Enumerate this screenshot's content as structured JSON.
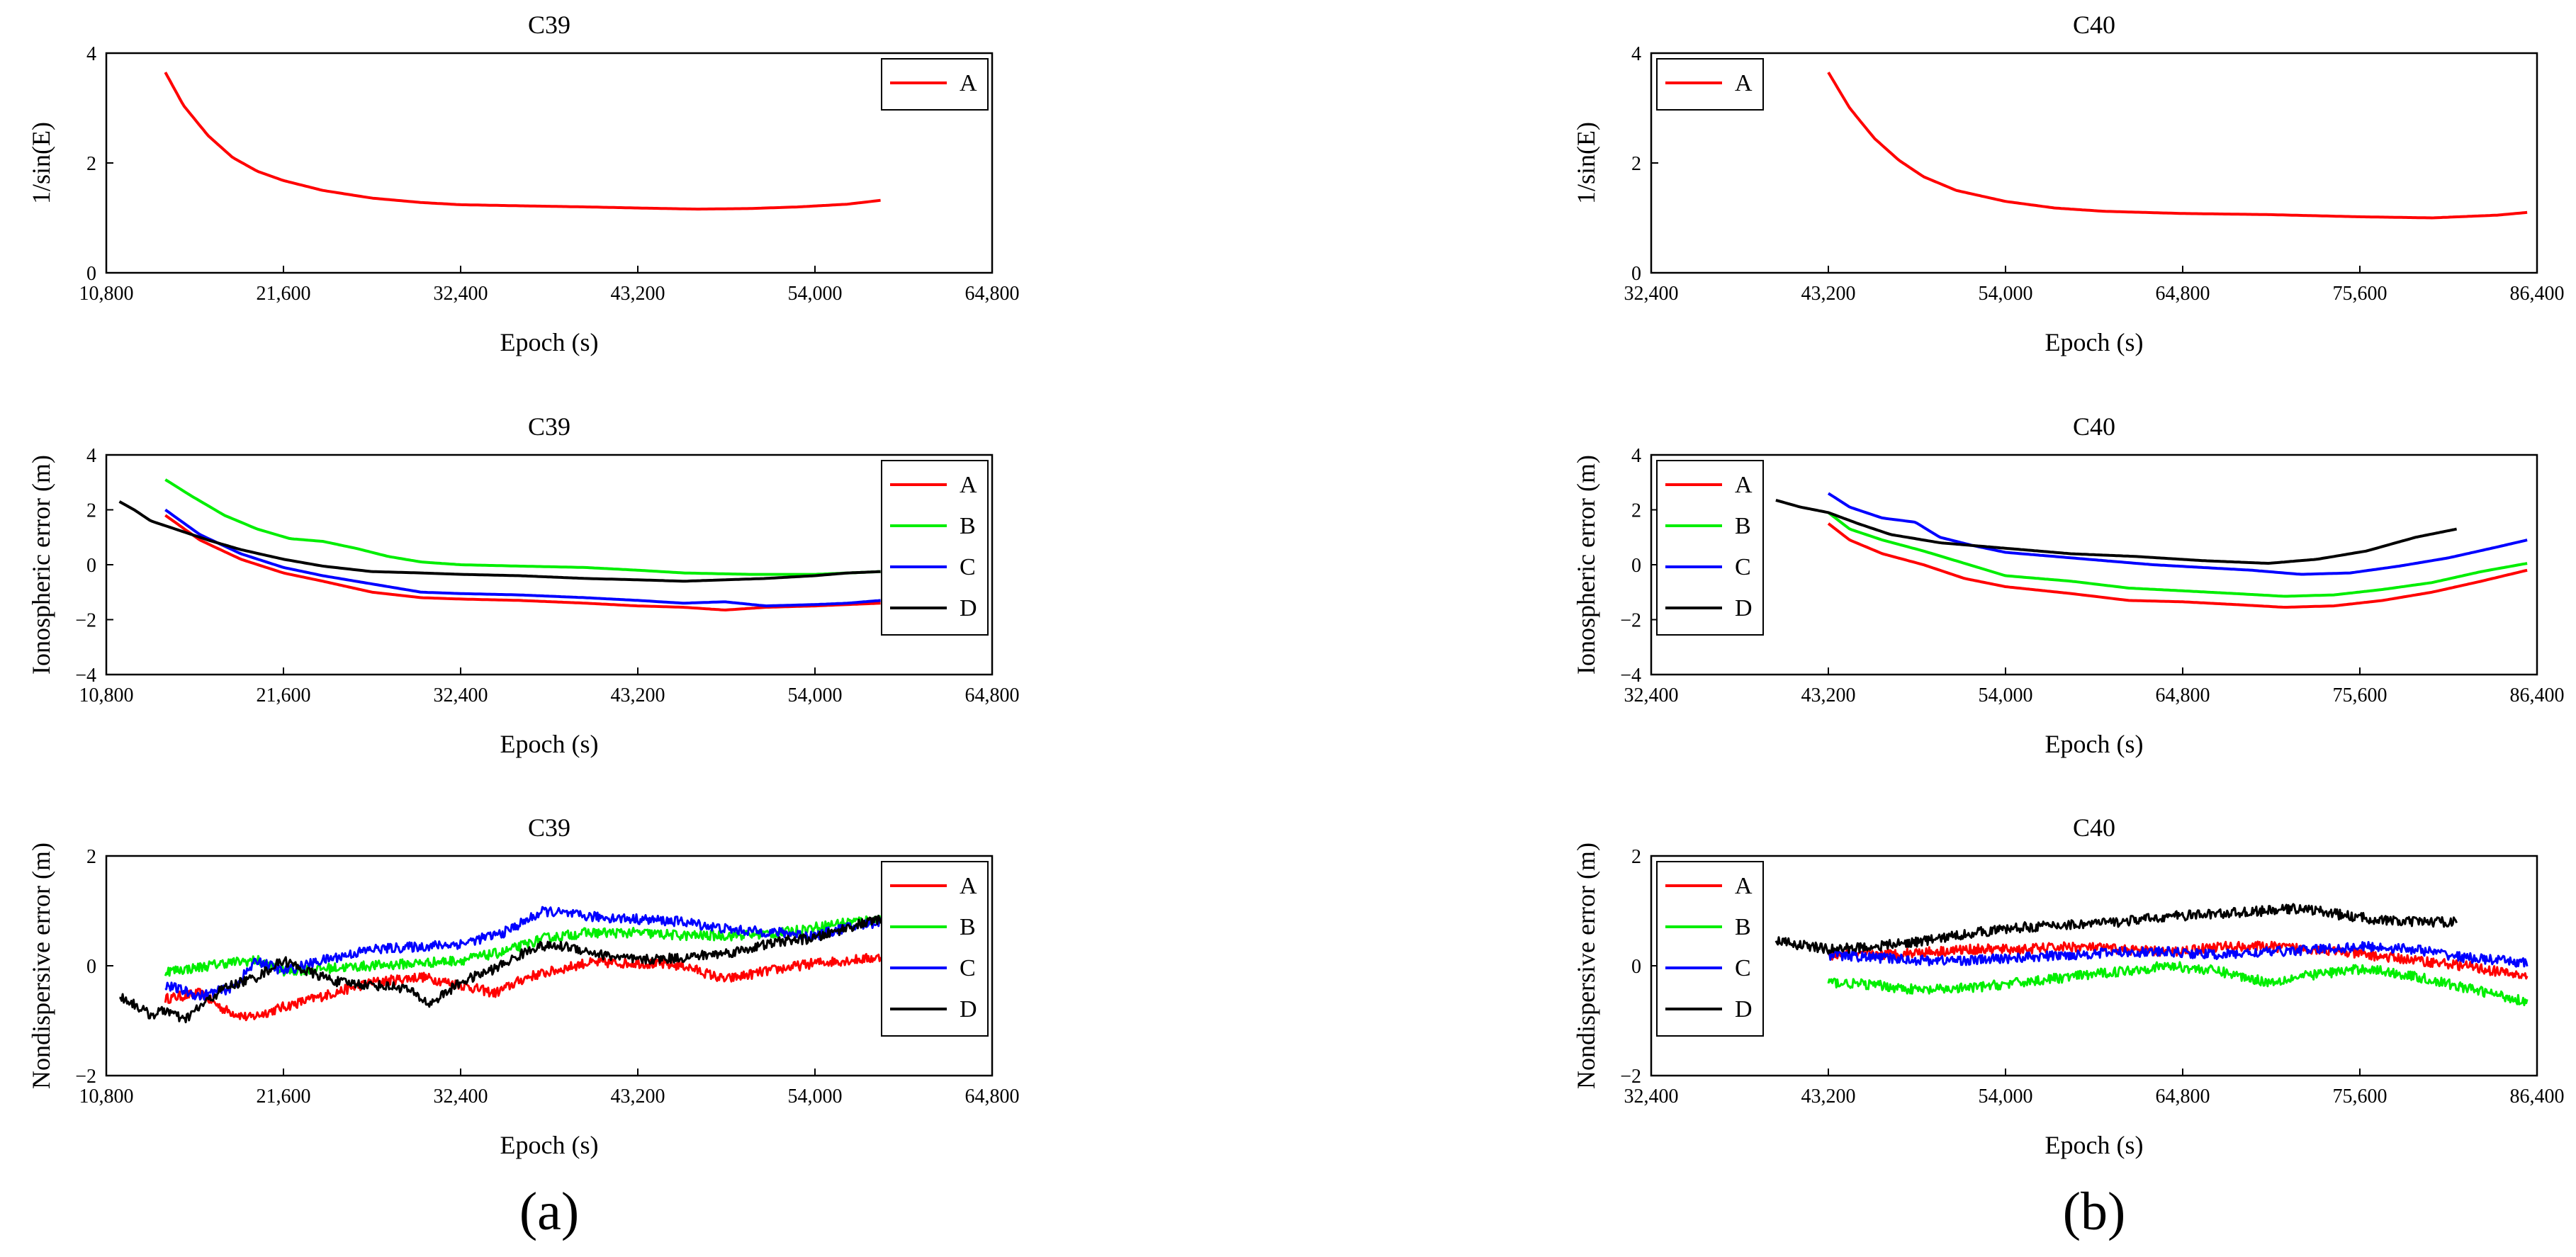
{
  "panel_labels": [
    "(a)",
    "(b)"
  ],
  "colors": {
    "A": "#ff0000",
    "B": "#00ee00",
    "C": "#0000ff",
    "D": "#000000",
    "axis": "#000000"
  },
  "chart_data": [
    {
      "type": "line",
      "title": "C39",
      "xlabel": "Epoch (s)",
      "ylabel": "1/sin(E)",
      "xlim": [
        10800,
        64800
      ],
      "xticks": [
        10800,
        21600,
        32400,
        43200,
        54000,
        64800
      ],
      "xtick_labels": [
        "10,800",
        "21,600",
        "32,400",
        "43,200",
        "54,000",
        "64,800"
      ],
      "ylim": [
        0,
        4
      ],
      "yticks": [
        0,
        2,
        4
      ],
      "ytick_labels": [
        "0",
        "2",
        "4"
      ],
      "legend": [
        "A"
      ],
      "legend_position": "top-right",
      "series": [
        {
          "name": "A",
          "x": [
            14400,
            15500,
            17000,
            18500,
            20000,
            21600,
            24000,
            27000,
            30000,
            32400,
            36000,
            40000,
            43200,
            46800,
            50000,
            53000,
            56000,
            58000
          ],
          "y": [
            3.65,
            3.05,
            2.5,
            2.1,
            1.85,
            1.68,
            1.5,
            1.36,
            1.28,
            1.24,
            1.22,
            1.2,
            1.18,
            1.16,
            1.17,
            1.2,
            1.25,
            1.32
          ]
        }
      ]
    },
    {
      "type": "line",
      "title": "C40",
      "xlabel": "Epoch (s)",
      "ylabel": "1/sin(E)",
      "xlim": [
        32400,
        86400
      ],
      "xticks": [
        32400,
        43200,
        54000,
        64800,
        75600,
        86400
      ],
      "xtick_labels": [
        "32,400",
        "43,200",
        "54,000",
        "64,800",
        "75,600",
        "86,400"
      ],
      "ylim": [
        0,
        4
      ],
      "yticks": [
        0,
        2,
        4
      ],
      "ytick_labels": [
        "0",
        "2",
        "4"
      ],
      "legend": [
        "A"
      ],
      "legend_position": "top-left",
      "series": [
        {
          "name": "A",
          "x": [
            43200,
            44500,
            46000,
            47500,
            49000,
            51000,
            54000,
            57000,
            60000,
            64800,
            70000,
            75600,
            80000,
            84000,
            85800
          ],
          "y": [
            3.65,
            3.0,
            2.45,
            2.05,
            1.75,
            1.5,
            1.3,
            1.18,
            1.12,
            1.08,
            1.06,
            1.02,
            1.0,
            1.05,
            1.1
          ]
        }
      ]
    },
    {
      "type": "line",
      "title": "C39",
      "xlabel": "Epoch (s)",
      "ylabel": "Ionospheric error (m)",
      "xlim": [
        10800,
        64800
      ],
      "xticks": [
        10800,
        21600,
        32400,
        43200,
        54000,
        64800
      ],
      "xtick_labels": [
        "10,800",
        "21,600",
        "32,400",
        "43,200",
        "54,000",
        "64,800"
      ],
      "ylim": [
        -4,
        4
      ],
      "yticks": [
        -4,
        -2,
        0,
        2,
        4
      ],
      "ytick_labels": [
        "−4",
        "−2",
        "0",
        "2",
        "4"
      ],
      "legend": [
        "A",
        "B",
        "C",
        "D"
      ],
      "legend_position": "top-right",
      "series": [
        {
          "name": "A",
          "x": [
            14400,
            16500,
            19000,
            21600,
            24000,
            27000,
            30000,
            32400,
            36000,
            40000,
            43200,
            46000,
            48500,
            51000,
            54000,
            56000,
            58000
          ],
          "y": [
            1.8,
            0.9,
            0.2,
            -0.3,
            -0.6,
            -1.0,
            -1.2,
            -1.25,
            -1.3,
            -1.4,
            -1.5,
            -1.55,
            -1.65,
            -1.55,
            -1.5,
            -1.45,
            -1.4
          ]
        },
        {
          "name": "B",
          "x": [
            14400,
            16000,
            18000,
            20000,
            22000,
            24000,
            26000,
            28000,
            30000,
            32400,
            36000,
            40000,
            43200,
            46000,
            50000,
            54000,
            56000,
            58000
          ],
          "y": [
            3.1,
            2.5,
            1.8,
            1.3,
            0.95,
            0.85,
            0.6,
            0.3,
            0.1,
            0.0,
            -0.05,
            -0.1,
            -0.2,
            -0.3,
            -0.35,
            -0.35,
            -0.3,
            -0.25
          ]
        },
        {
          "name": "C",
          "x": [
            14400,
            16500,
            19000,
            21600,
            24000,
            27000,
            30000,
            32400,
            36000,
            40000,
            43200,
            46000,
            48500,
            51000,
            54000,
            56000,
            58000
          ],
          "y": [
            2.0,
            1.1,
            0.4,
            -0.1,
            -0.4,
            -0.7,
            -1.0,
            -1.05,
            -1.1,
            -1.2,
            -1.3,
            -1.4,
            -1.35,
            -1.5,
            -1.45,
            -1.4,
            -1.3
          ]
        },
        {
          "name": "D",
          "x": [
            11600,
            12500,
            13500,
            15000,
            17000,
            19000,
            21600,
            24000,
            27000,
            30000,
            32400,
            36000,
            40000,
            43200,
            46000,
            48500,
            51000,
            54000,
            56000,
            58000
          ],
          "y": [
            2.3,
            2.0,
            1.6,
            1.3,
            0.9,
            0.55,
            0.2,
            -0.05,
            -0.25,
            -0.3,
            -0.35,
            -0.4,
            -0.5,
            -0.55,
            -0.6,
            -0.55,
            -0.5,
            -0.4,
            -0.3,
            -0.25
          ]
        }
      ]
    },
    {
      "type": "line",
      "title": "C40",
      "xlabel": "Epoch (s)",
      "ylabel": "Ionospheric error (m)",
      "xlim": [
        32400,
        86400
      ],
      "xticks": [
        32400,
        43200,
        54000,
        64800,
        75600,
        86400
      ],
      "xtick_labels": [
        "32,400",
        "43,200",
        "54,000",
        "64,800",
        "75,600",
        "86,400"
      ],
      "ylim": [
        -4,
        4
      ],
      "yticks": [
        -4,
        -2,
        0,
        2,
        4
      ],
      "ytick_labels": [
        "−4",
        "−2",
        "0",
        "2",
        "4"
      ],
      "legend": [
        "A",
        "B",
        "C",
        "D"
      ],
      "legend_position": "top-left",
      "series": [
        {
          "name": "A",
          "x": [
            43200,
            44500,
            46500,
            49000,
            51500,
            54000,
            58000,
            61500,
            64800,
            68000,
            71000,
            74000,
            77000,
            80000,
            83000,
            85800
          ],
          "y": [
            1.5,
            0.9,
            0.4,
            0.0,
            -0.5,
            -0.8,
            -1.05,
            -1.3,
            -1.35,
            -1.45,
            -1.55,
            -1.5,
            -1.3,
            -1.0,
            -0.6,
            -0.2
          ]
        },
        {
          "name": "B",
          "x": [
            43200,
            44500,
            46500,
            49000,
            51500,
            54000,
            58000,
            61500,
            64800,
            68000,
            71000,
            74000,
            77000,
            80000,
            83000,
            85800
          ],
          "y": [
            1.9,
            1.3,
            0.9,
            0.5,
            0.05,
            -0.4,
            -0.6,
            -0.85,
            -0.95,
            -1.05,
            -1.15,
            -1.1,
            -0.9,
            -0.65,
            -0.25,
            0.05
          ]
        },
        {
          "name": "C",
          "x": [
            43200,
            44500,
            46500,
            48500,
            50000,
            52000,
            54000,
            57000,
            60000,
            63000,
            66000,
            69000,
            72000,
            75000,
            78000,
            81000,
            84000,
            85800
          ],
          "y": [
            2.6,
            2.1,
            1.7,
            1.55,
            1.0,
            0.7,
            0.45,
            0.3,
            0.15,
            0.0,
            -0.1,
            -0.2,
            -0.35,
            -0.3,
            -0.05,
            0.25,
            0.65,
            0.9
          ]
        },
        {
          "name": "D",
          "x": [
            40000,
            41500,
            43200,
            45000,
            47000,
            50000,
            54000,
            58000,
            62000,
            66000,
            70000,
            73000,
            76000,
            79000,
            81500
          ],
          "y": [
            2.35,
            2.1,
            1.9,
            1.5,
            1.1,
            0.8,
            0.6,
            0.4,
            0.3,
            0.15,
            0.05,
            0.2,
            0.5,
            1.0,
            1.3
          ]
        }
      ]
    },
    {
      "type": "line",
      "title": "C39",
      "xlabel": "Epoch (s)",
      "ylabel": "Nondispersive error (m)",
      "xlim": [
        10800,
        64800
      ],
      "xticks": [
        10800,
        21600,
        32400,
        43200,
        54000,
        64800
      ],
      "xtick_labels": [
        "10,800",
        "21,600",
        "32,400",
        "43,200",
        "54,000",
        "64,800"
      ],
      "ylim": [
        -2,
        2
      ],
      "yticks": [
        -2,
        0,
        2
      ],
      "ytick_labels": [
        "−2",
        "0",
        "2"
      ],
      "legend": [
        "A",
        "B",
        "C",
        "D"
      ],
      "legend_position": "top-right",
      "series": [
        {
          "name": "A",
          "x": [
            14400,
            16500,
            18000,
            19500,
            21600,
            24000,
            27000,
            30000,
            32400,
            34500,
            36500,
            38000,
            40000,
            43200,
            46000,
            48500,
            51000,
            54000,
            56000,
            58000
          ],
          "y": [
            -0.6,
            -0.5,
            -0.8,
            -0.95,
            -0.75,
            -0.55,
            -0.3,
            -0.2,
            -0.35,
            -0.5,
            -0.2,
            -0.1,
            0.05,
            0.05,
            0.0,
            -0.25,
            -0.1,
            0.05,
            0.1,
            0.15
          ]
        },
        {
          "name": "B",
          "x": [
            14400,
            16000,
            18000,
            20000,
            21600,
            24000,
            27000,
            30000,
            32400,
            35000,
            37500,
            40000,
            43200,
            46000,
            49000,
            52000,
            54000,
            56000,
            58000
          ],
          "y": [
            -0.1,
            -0.05,
            0.05,
            0.1,
            -0.1,
            -0.05,
            0.0,
            0.05,
            0.1,
            0.25,
            0.5,
            0.6,
            0.6,
            0.55,
            0.55,
            0.6,
            0.7,
            0.8,
            0.85
          ]
        },
        {
          "name": "C",
          "x": [
            14400,
            16500,
            18500,
            20000,
            21600,
            24000,
            27000,
            30000,
            32400,
            35000,
            37500,
            40000,
            43200,
            46000,
            49000,
            52000,
            54000,
            56000,
            58000
          ],
          "y": [
            -0.35,
            -0.55,
            -0.4,
            0.1,
            -0.1,
            0.1,
            0.3,
            0.35,
            0.4,
            0.6,
            1.0,
            0.9,
            0.85,
            0.8,
            0.65,
            0.6,
            0.55,
            0.7,
            0.8
          ]
        },
        {
          "name": "D",
          "x": [
            11600,
            12500,
            13500,
            14500,
            15500,
            16500,
            18000,
            20000,
            21600,
            23000,
            25000,
            27000,
            29000,
            30500,
            32400,
            34500,
            37000,
            39000,
            41000,
            43200,
            46000,
            49000,
            52000,
            54000,
            56000,
            58000
          ],
          "y": [
            -0.55,
            -0.7,
            -0.9,
            -0.8,
            -1.0,
            -0.75,
            -0.4,
            -0.2,
            0.1,
            -0.1,
            -0.3,
            -0.35,
            -0.4,
            -0.7,
            -0.3,
            -0.05,
            0.35,
            0.35,
            0.2,
            0.1,
            0.15,
            0.25,
            0.45,
            0.5,
            0.7,
            0.85
          ]
        }
      ]
    },
    {
      "type": "line",
      "title": "C40",
      "xlabel": "Epoch (s)",
      "ylabel": "Nondispersive error (m)",
      "xlim": [
        32400,
        86400
      ],
      "xticks": [
        32400,
        43200,
        54000,
        64800,
        75600,
        86400
      ],
      "xtick_labels": [
        "32,400",
        "43,200",
        "54,000",
        "64,800",
        "75,600",
        "86,400"
      ],
      "ylim": [
        -2,
        2
      ],
      "yticks": [
        -2,
        0,
        2
      ],
      "ytick_labels": [
        "−2",
        "0",
        "2"
      ],
      "legend": [
        "A",
        "B",
        "C",
        "D"
      ],
      "legend_position": "top-left",
      "series": [
        {
          "name": "A",
          "x": [
            43200,
            46000,
            49000,
            52000,
            55000,
            58000,
            61000,
            64000,
            67000,
            70000,
            73000,
            76000,
            79000,
            82000,
            85800
          ],
          "y": [
            0.2,
            0.2,
            0.25,
            0.3,
            0.3,
            0.35,
            0.3,
            0.25,
            0.35,
            0.35,
            0.3,
            0.2,
            0.1,
            0.0,
            -0.2
          ]
        },
        {
          "name": "B",
          "x": [
            43200,
            46000,
            49000,
            52000,
            55000,
            58000,
            61000,
            64000,
            67000,
            70000,
            73000,
            76000,
            79000,
            82000,
            85800
          ],
          "y": [
            -0.3,
            -0.35,
            -0.45,
            -0.4,
            -0.3,
            -0.2,
            -0.1,
            0.0,
            -0.1,
            -0.3,
            -0.15,
            -0.05,
            -0.2,
            -0.4,
            -0.65
          ]
        },
        {
          "name": "C",
          "x": [
            43200,
            46000,
            49000,
            52000,
            55000,
            58000,
            61000,
            64000,
            67000,
            70000,
            73000,
            76000,
            79000,
            82000,
            85800
          ],
          "y": [
            0.2,
            0.15,
            0.1,
            0.1,
            0.15,
            0.2,
            0.25,
            0.25,
            0.2,
            0.25,
            0.3,
            0.35,
            0.3,
            0.15,
            0.05
          ]
        },
        {
          "name": "D",
          "x": [
            40000,
            43200,
            46000,
            49000,
            52000,
            55000,
            58000,
            61000,
            64000,
            67000,
            70000,
            72000,
            75000,
            78000,
            81500
          ],
          "y": [
            0.45,
            0.3,
            0.35,
            0.45,
            0.6,
            0.7,
            0.75,
            0.8,
            0.9,
            0.95,
            1.0,
            1.05,
            0.9,
            0.8,
            0.8
          ]
        }
      ]
    }
  ]
}
